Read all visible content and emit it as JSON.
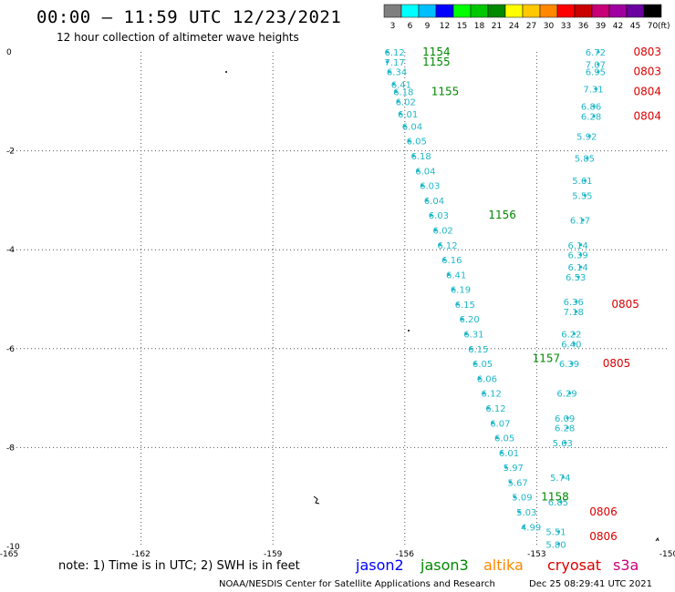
{
  "header": {
    "title": "00:00 – 11:59 UTC 12/23/2021",
    "subtitle": "12 hour collection of altimeter wave heights"
  },
  "colorbar": {
    "labels": [
      "3",
      "6",
      "9",
      "12",
      "15",
      "18",
      "21",
      "24",
      "27",
      "30",
      "33",
      "36",
      "39",
      "42",
      "45",
      "70"
    ],
    "unit": "(ft)",
    "colors": [
      "#7f7f7f",
      "#00ffff",
      "#00bfff",
      "#0000ff",
      "#00ff00",
      "#00c800",
      "#008800",
      "#ffff00",
      "#ffc800",
      "#ff8800",
      "#ff0000",
      "#c80000",
      "#c80078",
      "#a000a0",
      "#6a00a0",
      "#000000"
    ]
  },
  "chart_data": {
    "type": "scatter",
    "xlim": [
      -165,
      -150
    ],
    "ylim": [
      -10,
      0
    ],
    "xticks": [
      "-165",
      "-162",
      "-159",
      "-156",
      "-153",
      "-150"
    ],
    "yticks": [
      "0",
      "-2",
      "-4",
      "-6",
      "-8",
      "-10"
    ],
    "grid": true,
    "tracks": [
      {
        "satellite": "jason3",
        "color": "#1fb8c8",
        "points": [
          {
            "x": -156.4,
            "y": 0.0,
            "v": "6.12"
          },
          {
            "x": -156.4,
            "y": -0.2,
            "v": "7.17"
          },
          {
            "x": -156.35,
            "y": -0.4,
            "v": "6.34"
          },
          {
            "x": -156.25,
            "y": -0.65,
            "v": "6.41"
          },
          {
            "x": -156.2,
            "y": -0.8,
            "v": "6.18"
          },
          {
            "x": -156.15,
            "y": -1.0,
            "v": "6.02"
          },
          {
            "x": -156.1,
            "y": -1.25,
            "v": "6.01"
          },
          {
            "x": -156.0,
            "y": -1.5,
            "v": "6.04"
          },
          {
            "x": -155.9,
            "y": -1.8,
            "v": "6.05"
          },
          {
            "x": -155.8,
            "y": -2.1,
            "v": "6.18"
          },
          {
            "x": -155.7,
            "y": -2.4,
            "v": "6.04"
          },
          {
            "x": -155.6,
            "y": -2.7,
            "v": "6.03"
          },
          {
            "x": -155.5,
            "y": -3.0,
            "v": "6.04"
          },
          {
            "x": -155.4,
            "y": -3.3,
            "v": "6.03"
          },
          {
            "x": -155.3,
            "y": -3.6,
            "v": "6.02"
          },
          {
            "x": -155.2,
            "y": -3.9,
            "v": "6.12"
          },
          {
            "x": -155.1,
            "y": -4.2,
            "v": "6.16"
          },
          {
            "x": -155.0,
            "y": -4.5,
            "v": "6.41"
          },
          {
            "x": -154.9,
            "y": -4.8,
            "v": "6.19"
          },
          {
            "x": -154.8,
            "y": -5.1,
            "v": "6.15"
          },
          {
            "x": -154.7,
            "y": -5.4,
            "v": "6.20"
          },
          {
            "x": -154.6,
            "y": -5.7,
            "v": "6.31"
          },
          {
            "x": -154.5,
            "y": -6.0,
            "v": "6.15"
          },
          {
            "x": -154.4,
            "y": -6.3,
            "v": "6.05"
          },
          {
            "x": -154.3,
            "y": -6.6,
            "v": "6.06"
          },
          {
            "x": -154.2,
            "y": -6.9,
            "v": "6.12"
          },
          {
            "x": -154.1,
            "y": -7.2,
            "v": "6.12"
          },
          {
            "x": -154.0,
            "y": -7.5,
            "v": "6.07"
          },
          {
            "x": -153.9,
            "y": -7.8,
            "v": "6.05"
          },
          {
            "x": -153.8,
            "y": -8.1,
            "v": "6.01"
          },
          {
            "x": -153.7,
            "y": -8.4,
            "v": "5.97"
          },
          {
            "x": -153.6,
            "y": -8.7,
            "v": "5.67"
          },
          {
            "x": -153.5,
            "y": -9.0,
            "v": "5.09"
          },
          {
            "x": -153.4,
            "y": -9.3,
            "v": "5.03"
          },
          {
            "x": -153.3,
            "y": -9.6,
            "v": "4.99"
          }
        ]
      },
      {
        "satellite": "jason3",
        "color": "#1fb8c8",
        "points": [
          {
            "x": -151.6,
            "y": 0.0,
            "v": "6.72"
          },
          {
            "x": -151.6,
            "y": -0.25,
            "v": "7.07"
          },
          {
            "x": -151.6,
            "y": -0.4,
            "v": "6.95"
          },
          {
            "x": -151.65,
            "y": -0.75,
            "v": "7.31"
          },
          {
            "x": -151.7,
            "y": -1.1,
            "v": "6.86"
          },
          {
            "x": -151.7,
            "y": -1.3,
            "v": "6.28"
          },
          {
            "x": -151.8,
            "y": -1.7,
            "v": "5.92"
          },
          {
            "x": -151.85,
            "y": -2.15,
            "v": "5.85"
          },
          {
            "x": -151.9,
            "y": -2.6,
            "v": "5.61"
          },
          {
            "x": -151.9,
            "y": -2.9,
            "v": "5.55"
          },
          {
            "x": -151.95,
            "y": -3.4,
            "v": "6.17"
          },
          {
            "x": -152.0,
            "y": -3.9,
            "v": "6.14"
          },
          {
            "x": -152.0,
            "y": -4.1,
            "v": "6.39"
          },
          {
            "x": -152.0,
            "y": -4.35,
            "v": "6.14"
          },
          {
            "x": -152.05,
            "y": -4.55,
            "v": "6.53"
          },
          {
            "x": -152.1,
            "y": -5.05,
            "v": "6.36"
          },
          {
            "x": -152.1,
            "y": -5.25,
            "v": "7.18"
          },
          {
            "x": -152.15,
            "y": -5.7,
            "v": "6.22"
          },
          {
            "x": -152.15,
            "y": -5.9,
            "v": "6.40"
          },
          {
            "x": -152.2,
            "y": -6.3,
            "v": "6.39"
          },
          {
            "x": -152.25,
            "y": -6.9,
            "v": "6.29"
          },
          {
            "x": -152.3,
            "y": -7.4,
            "v": "6.09"
          },
          {
            "x": -152.3,
            "y": -7.6,
            "v": "6.28"
          },
          {
            "x": -152.35,
            "y": -7.9,
            "v": "5.63"
          },
          {
            "x": -152.4,
            "y": -8.6,
            "v": "5.74"
          },
          {
            "x": -152.45,
            "y": -9.1,
            "v": "6.85"
          },
          {
            "x": -152.5,
            "y": -9.7,
            "v": "5.51"
          },
          {
            "x": -152.5,
            "y": -9.95,
            "v": "5.80"
          }
        ]
      }
    ],
    "time_labels": [
      {
        "x": -155.6,
        "y": 0.0,
        "text": "1154",
        "color": "#008800"
      },
      {
        "x": -155.6,
        "y": -0.2,
        "text": "1155",
        "color": "#008800"
      },
      {
        "x": -155.4,
        "y": -0.8,
        "text": "1155",
        "color": "#008800"
      },
      {
        "x": -154.1,
        "y": -3.3,
        "text": "1156",
        "color": "#008800"
      },
      {
        "x": -153.1,
        "y": -6.2,
        "text": "1157",
        "color": "#008800"
      },
      {
        "x": -152.9,
        "y": -9.0,
        "text": "1158",
        "color": "#008800"
      },
      {
        "x": -150.8,
        "y": 0.0,
        "text": "0803",
        "color": "#dd0000"
      },
      {
        "x": -150.8,
        "y": -0.4,
        "text": "0803",
        "color": "#dd0000"
      },
      {
        "x": -150.8,
        "y": -0.8,
        "text": "0804",
        "color": "#dd0000"
      },
      {
        "x": -150.8,
        "y": -1.3,
        "text": "0804",
        "color": "#dd0000"
      },
      {
        "x": -151.3,
        "y": -5.1,
        "text": "0805",
        "color": "#dd0000"
      },
      {
        "x": -151.5,
        "y": -6.3,
        "text": "0805",
        "color": "#dd0000"
      },
      {
        "x": -151.8,
        "y": -9.3,
        "text": "0806",
        "color": "#dd0000"
      },
      {
        "x": -151.8,
        "y": -9.8,
        "text": "0806",
        "color": "#dd0000"
      }
    ]
  },
  "legend": {
    "note": "note: 1) Time is in UTC; 2) SWH is in feet",
    "satellites": [
      {
        "name": "jason2",
        "color": "#0000ff"
      },
      {
        "name": "jason3",
        "color": "#008800"
      },
      {
        "name": "altika",
        "color": "#ff8800"
      },
      {
        "name": "cryosat",
        "color": "#dd0000"
      },
      {
        "name": "s3a",
        "color": "#c80078"
      }
    ]
  },
  "footer": {
    "credit": "NOAA/NESDIS Center for Satellite Applications and Research",
    "stamp": "Dec 25 08:29:41 UTC 2021"
  }
}
